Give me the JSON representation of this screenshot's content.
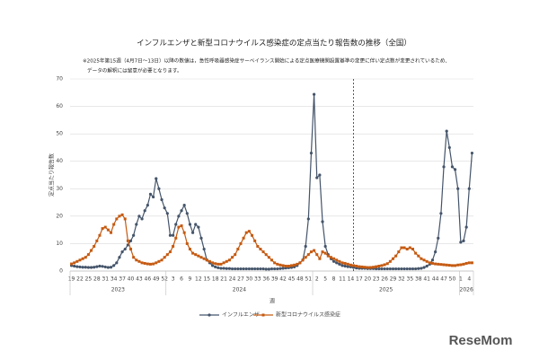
{
  "chart_data": {
    "type": "line",
    "title": "インフルエンザと新型コロナウイルス感染症の定点当たり報告数の推移（全国）",
    "notes": [
      "※2025年第15週（4月7日～13日）以降の数値は，急性呼吸器感染症サーベイランス開始による定点医療機関設置基準の変更に伴い定点数が変更されているため、",
      "データの解釈には留意が必要となります。"
    ],
    "ylabel": "定点当たり報告数",
    "xlabel": "週",
    "watermark": "ReseMom",
    "categories": [
      "19",
      null,
      null,
      "22",
      null,
      null,
      "25",
      null,
      null,
      "28",
      null,
      null,
      "31",
      null,
      null,
      "34",
      null,
      null,
      "37",
      null,
      null,
      "40",
      null,
      null,
      "43",
      null,
      null,
      "46",
      null,
      null,
      "49",
      null,
      null,
      "52",
      null,
      null,
      "3",
      null,
      null,
      "6",
      null,
      null,
      "9",
      null,
      null,
      "12",
      null,
      null,
      "15",
      null,
      null,
      "18",
      null,
      null,
      "21",
      null,
      null,
      "24",
      null,
      null,
      "27",
      null,
      null,
      "30",
      null,
      null,
      "33",
      null,
      null,
      "36",
      null,
      null,
      "39",
      null,
      null,
      "42",
      null,
      null,
      "45",
      null,
      null,
      "48",
      null,
      null,
      "51",
      null,
      null,
      "2",
      null,
      null,
      "5",
      null,
      null,
      "8",
      null,
      null,
      "11",
      null,
      null,
      "14",
      null,
      null,
      "17",
      null,
      null,
      "20",
      null,
      null,
      "23",
      null,
      null,
      "26",
      null,
      null,
      "29",
      null,
      null,
      "32",
      null,
      null,
      "35",
      null,
      null,
      "38",
      null,
      null,
      "41",
      null,
      null,
      "44",
      null,
      null,
      "47",
      null,
      null,
      "50",
      null,
      null,
      "1",
      null,
      null,
      "4",
      null
    ],
    "year_groups": [
      {
        "label": "2023",
        "weeks": 34
      },
      {
        "label": "2024",
        "weeks": 52
      },
      {
        "label": "2025",
        "weeks": 52
      },
      {
        "label": "2026",
        "weeks": 5
      }
    ],
    "reference_line": {
      "category_index": 100,
      "style": "dashed"
    },
    "series": [
      {
        "name": "インフルエンザ",
        "color": "#44546a",
        "marker": "circle",
        "values": [
          2,
          1.8,
          1.6,
          1.5,
          1.4,
          1.4,
          1.3,
          1.3,
          1.4,
          1.6,
          1.8,
          1.7,
          1.5,
          1.3,
          1.4,
          2,
          3,
          5,
          7,
          8,
          9.5,
          11,
          13,
          17,
          20,
          19,
          22,
          24,
          28,
          27,
          33.7,
          30,
          26,
          23,
          21,
          13,
          13,
          17,
          20,
          22,
          24,
          21,
          17,
          14,
          17,
          16,
          12,
          8,
          4,
          3,
          2,
          1.5,
          1.2,
          1,
          1,
          0.9,
          0.9,
          0.8,
          0.8,
          0.8,
          0.8,
          0.8,
          0.8,
          0.8,
          0.8,
          0.8,
          0.8,
          0.8,
          0.8,
          0.7,
          0.7,
          0.8,
          0.8,
          0.8,
          0.9,
          1,
          1.1,
          1.2,
          1.3,
          1.5,
          2,
          3,
          4,
          9,
          19,
          43,
          64.4,
          34,
          35,
          18,
          9,
          6,
          4.5,
          3.5,
          3,
          2.5,
          2,
          1.8,
          1.6,
          1.5,
          1.3,
          1.1,
          1,
          1,
          1,
          0.9,
          0.9,
          0.9,
          0.8,
          0.8,
          0.8,
          0.8,
          0.8,
          0.8,
          0.8,
          0.8,
          0.8,
          0.8,
          0.8,
          0.8,
          0.8,
          0.8,
          0.8,
          0.9,
          1,
          1.3,
          1.8,
          2.5,
          4,
          7,
          12,
          21,
          38,
          51,
          45,
          38,
          37,
          30,
          10.5,
          11,
          16,
          30,
          43
        ]
      },
      {
        "name": "新型コロナウイルス感染症",
        "color": "#c55a11",
        "marker": "square",
        "values": [
          2.6,
          3,
          3.5,
          4,
          4.5,
          5,
          6,
          7.5,
          9,
          11,
          13,
          15.5,
          16,
          15,
          14,
          17,
          19,
          20,
          20.5,
          19,
          11,
          8,
          5,
          4,
          3.5,
          3,
          2.8,
          2.6,
          2.5,
          2.6,
          3,
          3.5,
          4,
          5,
          6,
          7,
          9,
          12,
          16,
          16.5,
          14,
          10,
          8,
          6.5,
          6,
          5.5,
          5,
          4.5,
          4,
          3.5,
          3,
          2.7,
          2.5,
          2.5,
          3,
          3.5,
          4,
          5,
          6,
          8,
          10,
          12,
          14,
          14.5,
          13,
          11,
          9,
          8,
          7,
          6,
          5,
          4,
          3,
          2.5,
          2.2,
          2,
          1.8,
          1.8,
          2,
          2.2,
          2.5,
          3,
          4,
          5,
          6,
          7,
          7.5,
          6,
          4.5,
          7,
          6.5,
          5.5,
          5,
          4.5,
          4,
          3.5,
          3,
          2.8,
          2.5,
          2.2,
          2,
          1.8,
          1.6,
          1.5,
          1.4,
          1.3,
          1.3,
          1.4,
          1.6,
          1.8,
          2,
          2.3,
          2.7,
          3.5,
          4.5,
          5.5,
          7,
          8.5,
          8.5,
          8,
          8.5,
          8,
          6.5,
          5.5,
          4.5,
          4,
          3.5,
          3,
          2.8,
          2.6,
          2.5,
          2.4,
          2.3,
          2.2,
          2.1,
          2,
          2,
          2.2,
          2.3,
          2.5,
          2.8,
          3,
          3
        ]
      }
    ],
    "ylim": [
      0,
      70
    ],
    "yticks": [
      0,
      10,
      20,
      30,
      40,
      50,
      60,
      70
    ],
    "grid": true,
    "legend": "bottom"
  }
}
